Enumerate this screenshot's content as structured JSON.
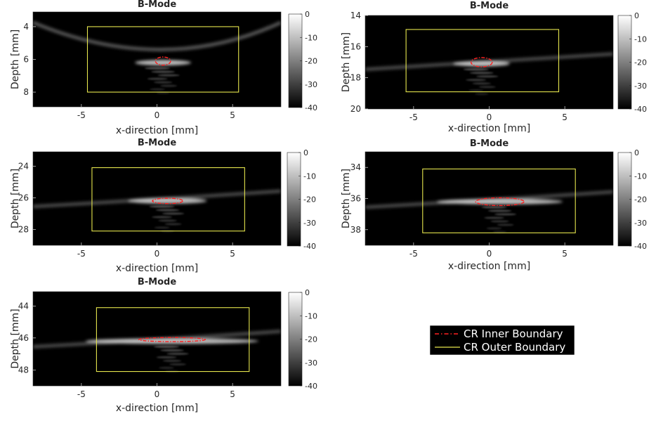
{
  "chart_data": [
    {
      "type": "heatmap",
      "title": "B-Mode",
      "xlabel": "x-direction [mm]",
      "ylabel": "Depth [mm]",
      "xlim": [
        -8.2,
        8.2
      ],
      "ylim": [
        3.1,
        8.9
      ],
      "xticks": [
        "-5",
        "0",
        "5"
      ],
      "yticks": [
        "4",
        "6",
        "8"
      ],
      "colorbar": {
        "range": [
          -40,
          0
        ],
        "ticks": [
          "0",
          "-10",
          "-20",
          "-30",
          "-40"
        ]
      },
      "inner_boundary": {
        "cx": 0.4,
        "cy": 6.1,
        "rx": 0.5,
        "ry": 0.25
      },
      "outer_boundary": {
        "x": [
          -4.6,
          5.4
        ],
        "y": [
          4.0,
          8.0
        ]
      },
      "target_depth": 6.2
    },
    {
      "type": "heatmap",
      "title": "B-Mode",
      "xlabel": "x-direction [mm]",
      "ylabel": "Depth [mm]",
      "xlim": [
        -8.2,
        8.2
      ],
      "ylim": [
        14.0,
        20.0
      ],
      "xticks": [
        "-5",
        "0",
        "5"
      ],
      "yticks": [
        "14",
        "16",
        "18",
        "20"
      ],
      "colorbar": {
        "range": [
          -40,
          0
        ],
        "ticks": [
          "0",
          "-10",
          "-20",
          "-30",
          "-40"
        ]
      },
      "inner_boundary": {
        "cx": -0.5,
        "cy": 17.0,
        "rx": 0.7,
        "ry": 0.3
      },
      "outer_boundary": {
        "x": [
          -5.5,
          4.6
        ],
        "y": [
          14.9,
          18.9
        ]
      },
      "target_depth": 17.1
    },
    {
      "type": "heatmap",
      "title": "B-Mode",
      "xlabel": "x-direction [mm]",
      "ylabel": "Depth [mm]",
      "xlim": [
        -8.2,
        8.2
      ],
      "ylim": [
        23.1,
        29.0
      ],
      "xticks": [
        "-5",
        "0",
        "5"
      ],
      "yticks": [
        "24",
        "26",
        "28"
      ],
      "colorbar": {
        "range": [
          -40,
          0
        ],
        "ticks": [
          "0",
          "-10",
          "-20",
          "-30",
          "-40"
        ]
      },
      "inner_boundary": {
        "cx": 0.7,
        "cy": 26.2,
        "rx": 1.0,
        "ry": 0.17
      },
      "outer_boundary": {
        "x": [
          -4.3,
          5.8
        ],
        "y": [
          24.1,
          28.1
        ]
      },
      "target_depth": 26.2
    },
    {
      "type": "heatmap",
      "title": "B-Mode",
      "xlabel": "x-direction [mm]",
      "ylabel": "Depth [mm]",
      "xlim": [
        -8.2,
        8.2
      ],
      "ylim": [
        33.0,
        39.0
      ],
      "xticks": [
        "-5",
        "0",
        "5"
      ],
      "yticks": [
        "34",
        "36",
        "38"
      ],
      "colorbar": {
        "range": [
          -40,
          0
        ],
        "ticks": [
          "0",
          "-10",
          "-20",
          "-30",
          "-40"
        ]
      },
      "inner_boundary": {
        "cx": 0.7,
        "cy": 36.2,
        "rx": 1.6,
        "ry": 0.25
      },
      "outer_boundary": {
        "x": [
          -4.4,
          5.7
        ],
        "y": [
          34.1,
          38.2
        ]
      },
      "target_depth": 36.2
    },
    {
      "type": "heatmap",
      "title": "B-Mode",
      "xlabel": "x-direction [mm]",
      "ylabel": "Depth [mm]",
      "xlim": [
        -8.2,
        8.2
      ],
      "ylim": [
        43.1,
        49.0
      ],
      "xticks": [
        "-5",
        "0",
        "5"
      ],
      "yticks": [
        "44",
        "46",
        "48"
      ],
      "colorbar": {
        "range": [
          -40,
          0
        ],
        "ticks": [
          "0",
          "-10",
          "-20",
          "-30",
          "-40"
        ]
      },
      "inner_boundary": {
        "cx": 1.0,
        "cy": 46.1,
        "rx": 2.2,
        "ry": 0.13
      },
      "outer_boundary": {
        "x": [
          -4.0,
          6.1
        ],
        "y": [
          44.1,
          48.1
        ]
      },
      "target_depth": 46.2
    }
  ],
  "legend": {
    "entries": [
      {
        "label": "CR Inner Boundary",
        "color": "#ff2020",
        "style": "dashdot"
      },
      {
        "label": "CR Outer Boundary",
        "color": "#e6e64d",
        "style": "solid"
      }
    ],
    "background": "#000000"
  },
  "colors": {
    "inner": "#ff2020",
    "outer": "#e6e64d",
    "plot_bg": "#000000"
  }
}
